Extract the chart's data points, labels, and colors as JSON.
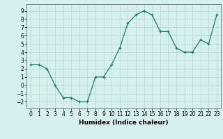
{
  "x": [
    0,
    1,
    2,
    3,
    4,
    5,
    6,
    7,
    8,
    9,
    10,
    11,
    12,
    13,
    14,
    15,
    16,
    17,
    18,
    19,
    20,
    21,
    22,
    23
  ],
  "y": [
    2.5,
    2.5,
    2.0,
    0.0,
    -1.5,
    -1.5,
    -2.0,
    -2.0,
    1.0,
    1.0,
    2.5,
    4.5,
    7.5,
    8.5,
    9.0,
    8.5,
    6.5,
    6.5,
    4.5,
    4.0,
    4.0,
    5.5,
    5.0,
    8.5
  ],
  "xlabel": "Humidex (Indice chaleur)",
  "ylim": [
    -2.8,
    9.8
  ],
  "xlim": [
    -0.5,
    23.5
  ],
  "yticks": [
    -2,
    -1,
    0,
    1,
    2,
    3,
    4,
    5,
    6,
    7,
    8,
    9
  ],
  "xticks": [
    0,
    1,
    2,
    3,
    4,
    5,
    6,
    7,
    8,
    9,
    10,
    11,
    12,
    13,
    14,
    15,
    16,
    17,
    18,
    19,
    20,
    21,
    22,
    23
  ],
  "line_color": "#1a7a6e",
  "marker_color": "#1a7a6e",
  "bg_color": "#d6efef",
  "grid_color": "#b8d8d8",
  "label_fontsize": 6.5,
  "tick_fontsize": 5.5
}
